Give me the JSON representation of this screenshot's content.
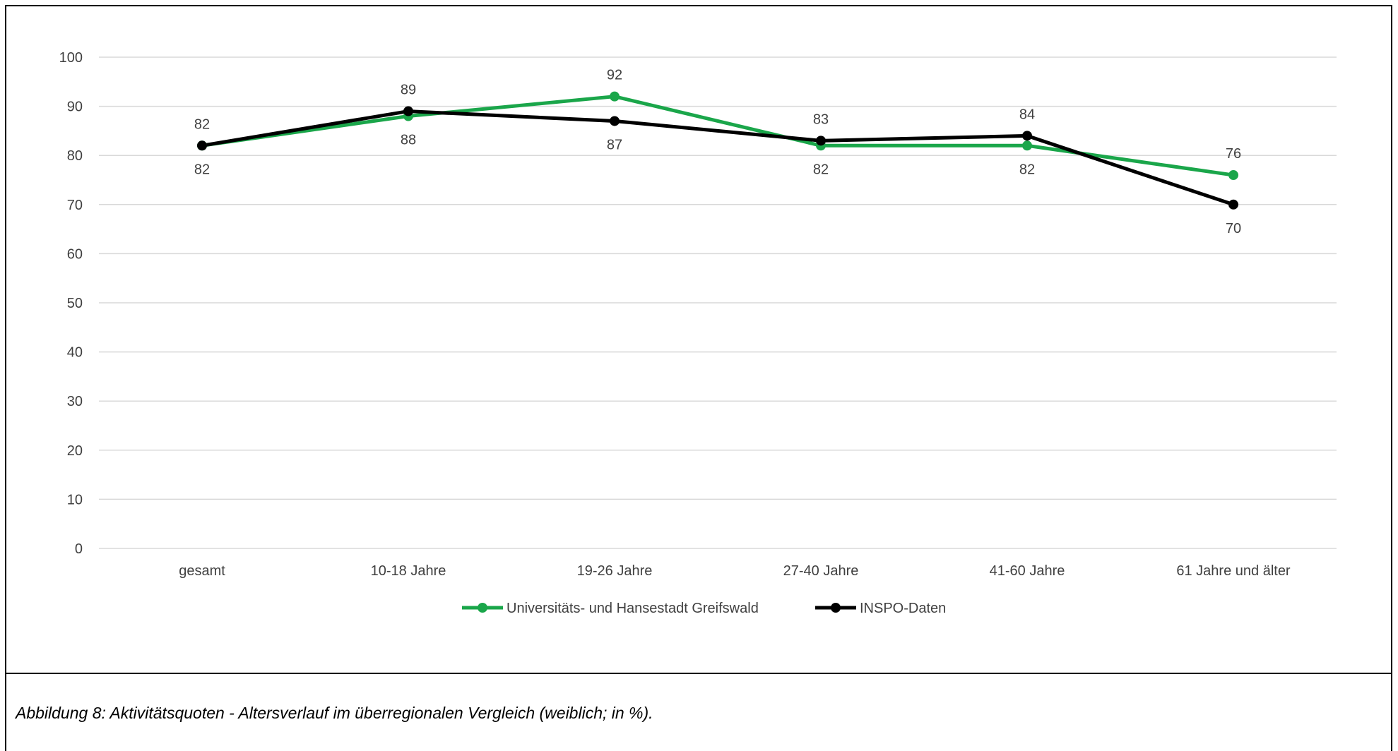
{
  "chart_data": {
    "type": "line",
    "categories": [
      "gesamt",
      "10-18 Jahre",
      "19-26 Jahre",
      "27-40 Jahre",
      "41-60 Jahre",
      "61 Jahre und älter"
    ],
    "series": [
      {
        "name": "Universitäts- und Hansestadt Greifswald",
        "values": [
          82,
          88,
          92,
          82,
          82,
          76
        ],
        "color": "#1aa64a"
      },
      {
        "name": "INSPO-Daten",
        "values": [
          82,
          89,
          87,
          83,
          84,
          70
        ],
        "color": "#000000"
      }
    ],
    "ylim": [
      0,
      100
    ],
    "yticks": [
      0,
      10,
      20,
      30,
      40,
      50,
      60,
      70,
      80,
      90,
      100
    ],
    "grid": true,
    "legend_position": "bottom"
  },
  "caption": "Abbildung 8: Aktivitätsquoten - Altersverlauf im überregionalen Vergleich (weiblich; in %)."
}
